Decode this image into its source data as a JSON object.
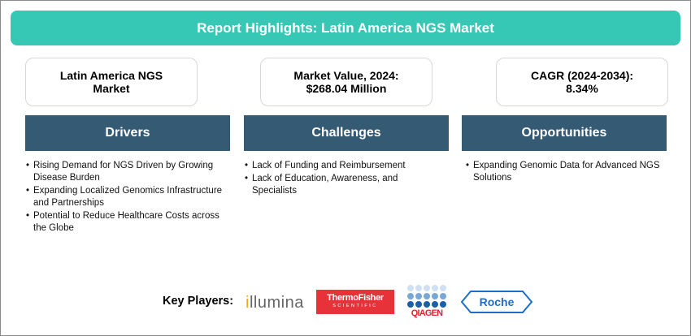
{
  "header": {
    "title": "Report Highlights: Latin America NGS Market"
  },
  "cards": [
    {
      "text": "Latin America NGS Market"
    },
    {
      "text": "Market Value, 2024: $268.04 Million"
    },
    {
      "text": "CAGR (2024-2034): 8.34%"
    }
  ],
  "sections": [
    {
      "title": "Drivers",
      "items": [
        "Rising Demand for NGS Driven by Growing Disease Burden",
        "Expanding Localized Genomics Infrastructure and Partnerships",
        "Potential to Reduce Healthcare Costs across the Globe"
      ]
    },
    {
      "title": "Challenges",
      "items": [
        "Lack of Funding and Reimbursement",
        "Lack of Education, Awareness, and Specialists"
      ]
    },
    {
      "title": "Opportunities",
      "items": [
        "Expanding Genomic Data for Advanced NGS Solutions"
      ]
    }
  ],
  "key_players": {
    "label": "Key Players:",
    "logos": [
      "illumina",
      "Thermo Fisher Scientific",
      "QIAGEN",
      "Roche"
    ]
  },
  "colors": {
    "banner": "#37c8b5",
    "section_header": "#345a74",
    "thermo": "#e8323a",
    "roche": "#1e6ec8",
    "qiagen": "#e0242f"
  }
}
